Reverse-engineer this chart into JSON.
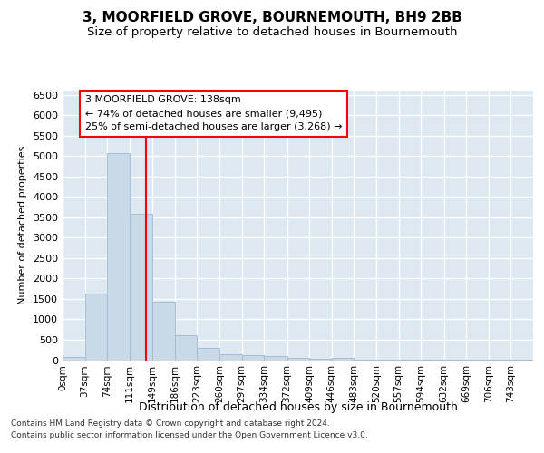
{
  "title": "3, MOORFIELD GROVE, BOURNEMOUTH, BH9 2BB",
  "subtitle": "Size of property relative to detached houses in Bournemouth",
  "xlabel": "Distribution of detached houses by size in Bournemouth",
  "ylabel": "Number of detached properties",
  "footnote1": "Contains HM Land Registry data © Crown copyright and database right 2024.",
  "footnote2": "Contains public sector information licensed under the Open Government Licence v3.0.",
  "annotation_line1": "3 MOORFIELD GROVE: 138sqm",
  "annotation_line2": "← 74% of detached houses are smaller (9,495)",
  "annotation_line3": "25% of semi-detached houses are larger (3,268) →",
  "bar_color": "#c9d9e8",
  "bar_edgecolor": "#a0b8d0",
  "red_line_x": 138,
  "bin_edges": [
    0,
    37,
    74,
    111,
    149,
    186,
    223,
    260,
    297,
    334,
    372,
    409,
    446,
    483,
    520,
    557,
    594,
    632,
    669,
    706,
    743,
    780
  ],
  "bar_heights": [
    75,
    1640,
    5070,
    3580,
    1420,
    620,
    290,
    155,
    125,
    90,
    50,
    25,
    50,
    15,
    10,
    5,
    5,
    2,
    2,
    1,
    1
  ],
  "ylim": [
    0,
    6600
  ],
  "yticks": [
    0,
    500,
    1000,
    1500,
    2000,
    2500,
    3000,
    3500,
    4000,
    4500,
    5000,
    5500,
    6000,
    6500
  ],
  "xlim": [
    0,
    780
  ],
  "plot_bg_color": "#dde8f0",
  "grid_color": "#ffffff",
  "title_fontsize": 11,
  "subtitle_fontsize": 9.5,
  "ylabel_fontsize": 8,
  "xlabel_fontsize": 9,
  "ytick_fontsize": 8,
  "xtick_fontsize": 7.5,
  "annotation_fontsize": 8,
  "footnote_fontsize": 6.5
}
